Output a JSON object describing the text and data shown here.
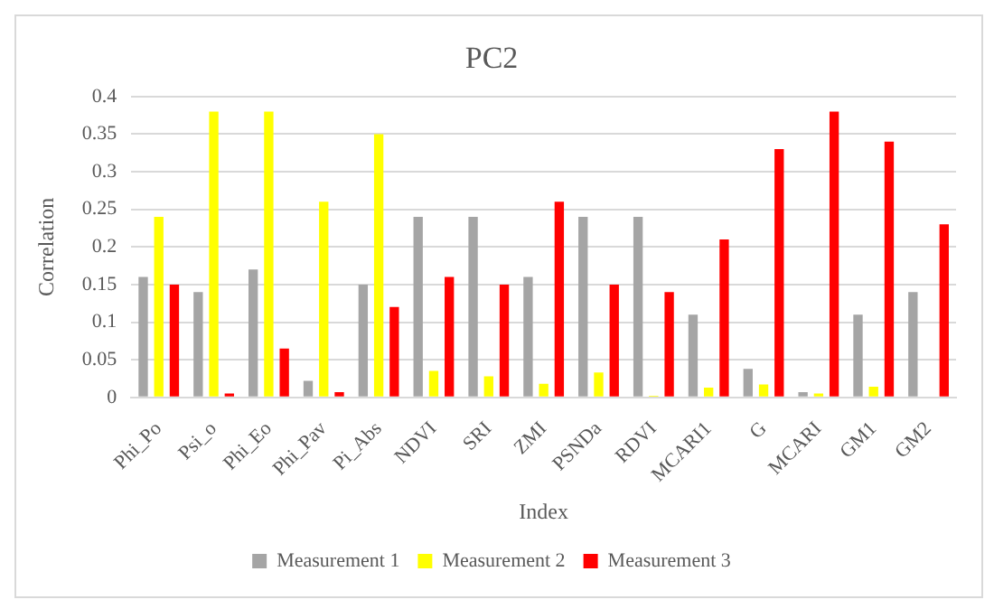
{
  "chart_data": {
    "type": "bar",
    "title": "PC2",
    "xlabel": "Index",
    "ylabel": "Correlation",
    "categories": [
      "Phi_Po",
      "Psi_o",
      "Phi_Eo",
      "Phi_Pav",
      "Pi_Abs",
      "NDVI",
      "SRI",
      "ZMI",
      "PSNDa",
      "RDVI",
      "MCARI1",
      "G",
      "MCARI",
      "GM1",
      "GM2"
    ],
    "series": [
      {
        "name": "Measurement 1",
        "color": "#a5a5a5",
        "values": [
          0.16,
          0.14,
          0.17,
          0.022,
          0.15,
          0.24,
          0.24,
          0.16,
          0.24,
          0.24,
          0.11,
          0.038,
          0.007,
          0.11,
          0.14
        ]
      },
      {
        "name": "Measurement 2",
        "color": "#ffff00",
        "values": [
          0.24,
          0.38,
          0.38,
          0.26,
          0.35,
          0.035,
          0.028,
          0.018,
          0.033,
          0.002,
          0.013,
          0.017,
          0.005,
          0.014,
          0
        ]
      },
      {
        "name": "Measurement 3",
        "color": "#ff0000",
        "values": [
          0.15,
          0.005,
          0.065,
          0.007,
          0.12,
          0.16,
          0.15,
          0.26,
          0.15,
          0.14,
          0.21,
          0.33,
          0.38,
          0.34,
          0.23
        ]
      }
    ],
    "ylim": [
      0,
      0.4
    ],
    "yticks": [
      0,
      0.05,
      0.1,
      0.15,
      0.2,
      0.25,
      0.3,
      0.35,
      0.4
    ],
    "grid": "y",
    "legend": "bottom"
  }
}
